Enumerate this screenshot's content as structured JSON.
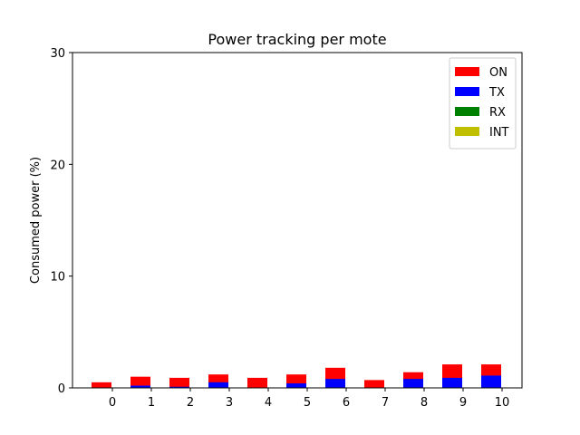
{
  "chart_data": {
    "type": "bar",
    "stacked": true,
    "title": "Power tracking per mote",
    "xlabel": "",
    "ylabel": "Consumed power (%)",
    "ylim": [
      0,
      30
    ],
    "yticks": [
      0,
      10,
      20,
      30
    ],
    "categories": [
      "0",
      "1",
      "2",
      "3",
      "4",
      "5",
      "6",
      "7",
      "8",
      "9",
      "10"
    ],
    "series": [
      {
        "name": "ON",
        "color": "#ff0000",
        "values": [
          0.5,
          1.0,
          0.9,
          1.2,
          0.9,
          1.2,
          1.8,
          0.7,
          1.4,
          2.1,
          2.1
        ]
      },
      {
        "name": "TX",
        "color": "#0000ff",
        "values": [
          0.0,
          0.2,
          0.1,
          0.5,
          0.0,
          0.4,
          0.8,
          0.0,
          0.8,
          0.9,
          1.1
        ]
      },
      {
        "name": "RX",
        "color": "#008000",
        "values": [
          0,
          0,
          0,
          0,
          0,
          0,
          0,
          0,
          0,
          0,
          0
        ]
      },
      {
        "name": "INT",
        "color": "#bfbf00",
        "values": [
          0,
          0,
          0,
          0,
          0,
          0,
          0,
          0,
          0,
          0,
          0
        ]
      }
    ],
    "grid": false,
    "legend_position": "top-right"
  }
}
